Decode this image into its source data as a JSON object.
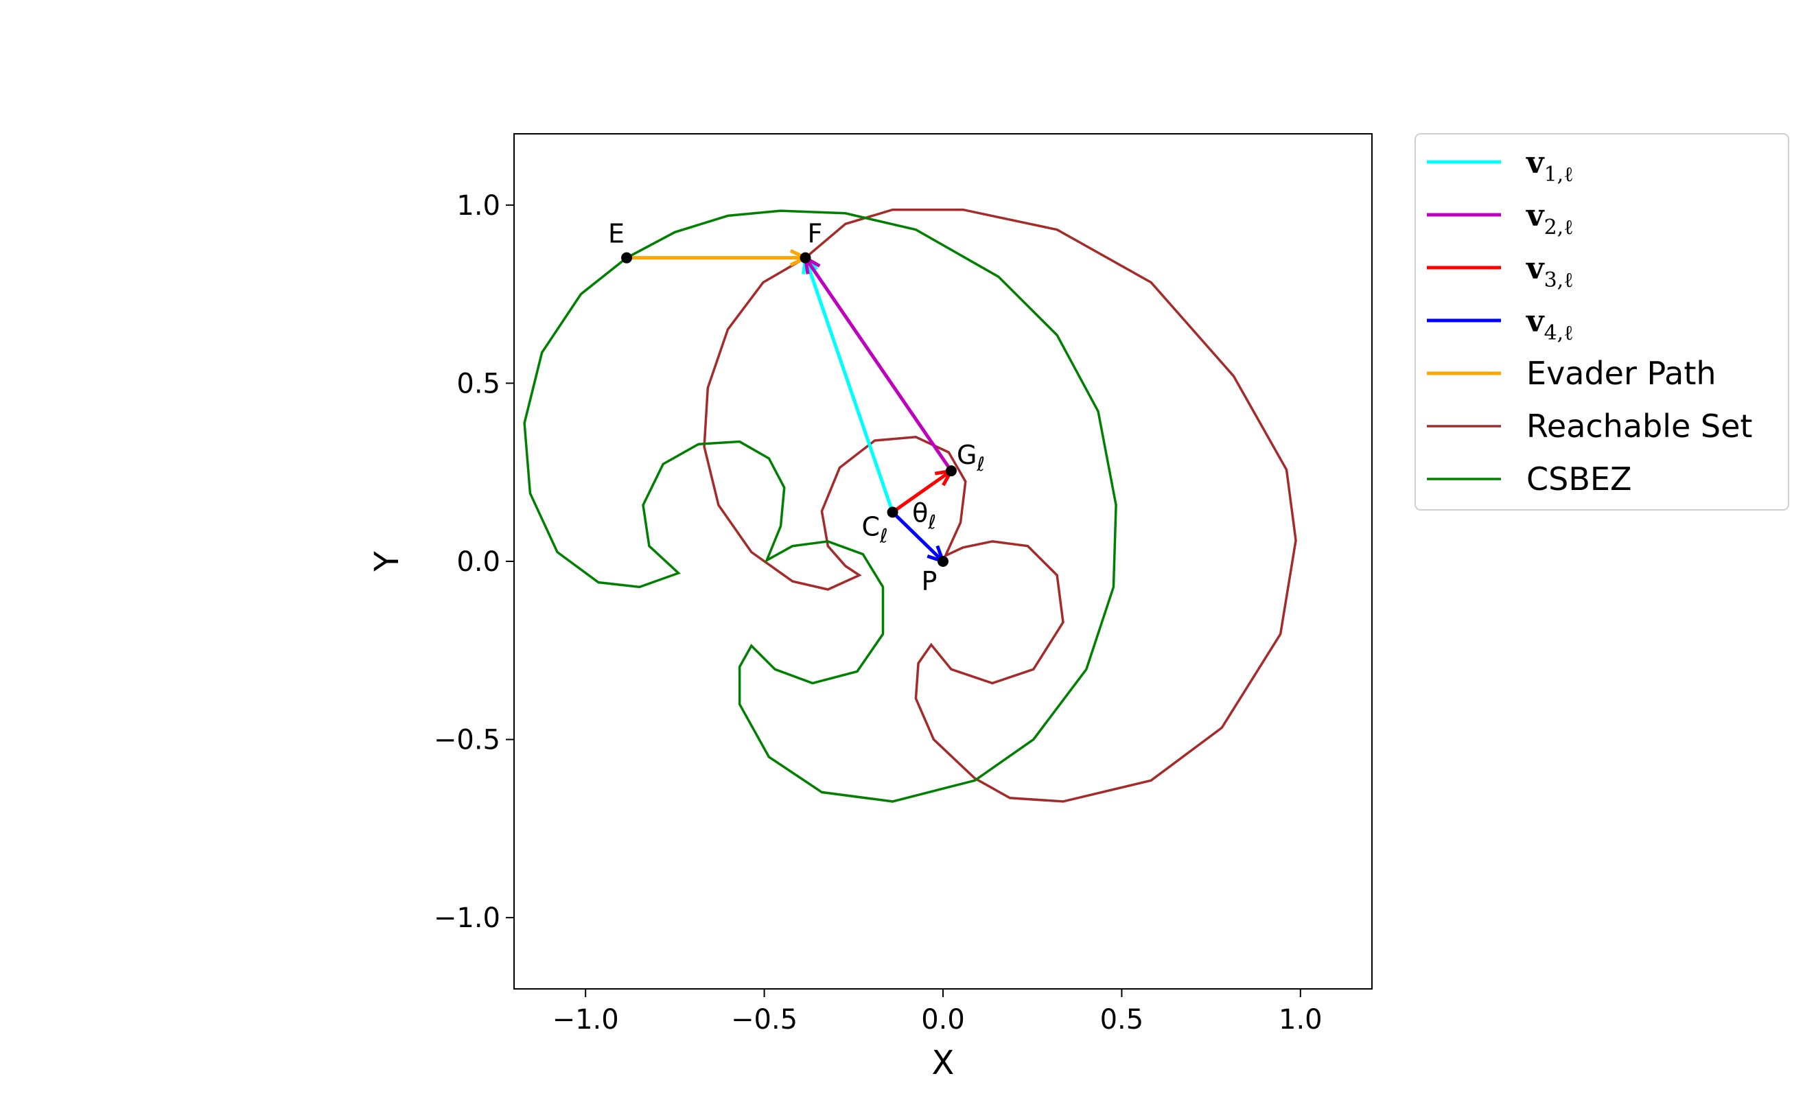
{
  "chart_data": {
    "type": "line",
    "xlabel": "X",
    "ylabel": "Y",
    "xlim": [
      -1.2,
      1.2
    ],
    "ylim": [
      -1.2,
      1.2
    ],
    "xticks": [
      {
        "value": -1,
        "label": "−1.0"
      },
      {
        "value": -0.5,
        "label": "−0.5"
      },
      {
        "value": 0,
        "label": "0.0"
      },
      {
        "value": 0.5,
        "label": "0.5"
      },
      {
        "value": 1,
        "label": "1.0"
      }
    ],
    "yticks": [
      {
        "value": -1,
        "label": "−1.0"
      },
      {
        "value": -0.5,
        "label": "−0.5"
      },
      {
        "value": 0,
        "label": "0.0"
      },
      {
        "value": 0.5,
        "label": "0.5"
      },
      {
        "value": 1,
        "label": "1.0"
      }
    ],
    "vectors": [
      {
        "name": "v",
        "sub": "1,ℓ",
        "color": "#00ffff",
        "x": [
          -0.141,
          -0.385
        ],
        "y": [
          0.138,
          0.852
        ]
      },
      {
        "name": "v",
        "sub": "2,ℓ",
        "color": "#bf00bf",
        "x": [
          0.023,
          -0.385
        ],
        "y": [
          0.254,
          0.852
        ]
      },
      {
        "name": "v",
        "sub": "3,ℓ",
        "color": "#ff0000",
        "x": [
          -0.141,
          0.023
        ],
        "y": [
          0.138,
          0.254
        ]
      },
      {
        "name": "v",
        "sub": "4,ℓ",
        "color": "#0000ff",
        "x": [
          -0.141,
          0
        ],
        "y": [
          0.138,
          0
        ]
      },
      {
        "name": "Evader Path",
        "color": "#ffa500",
        "x": [
          -0.885,
          -0.385
        ],
        "y": [
          0.852,
          0.852
        ]
      }
    ],
    "series": [
      {
        "name": "Reachable Set",
        "color": "#a52a2a",
        "x": [
          -0.385,
          -0.273,
          -0.141,
          0.056,
          0.319,
          0.582,
          0.813,
          0.961,
          0.987,
          0.944,
          0.78,
          0.582,
          0.336,
          0.187,
          0.089,
          -0.026,
          -0.076,
          -0.069,
          -0.033,
          0.023,
          0.138,
          0.253,
          0.336,
          0.319,
          0.237,
          0.138,
          0.056,
          0.007,
          0.049,
          0.063,
          0.016,
          -0.076,
          -0.191,
          -0.289,
          -0.339,
          -0.322,
          -0.273,
          -0.234,
          -0.322,
          -0.421,
          -0.536,
          -0.628,
          -0.668,
          -0.658,
          -0.602,
          -0.503,
          -0.385
        ],
        "y": [
          0.852,
          0.947,
          0.987,
          0.987,
          0.931,
          0.783,
          0.52,
          0.257,
          0.059,
          -0.204,
          -0.467,
          -0.615,
          -0.674,
          -0.664,
          -0.609,
          -0.5,
          -0.385,
          -0.286,
          -0.234,
          -0.303,
          -0.342,
          -0.303,
          -0.171,
          -0.039,
          0.043,
          0.056,
          0.039,
          0.016,
          0.109,
          0.224,
          0.306,
          0.349,
          0.339,
          0.263,
          0.141,
          0.043,
          -0.013,
          -0.039,
          -0.079,
          -0.056,
          0.026,
          0.158,
          0.322,
          0.487,
          0.651,
          0.783,
          0.852
        ]
      },
      {
        "name": "CSBEZ",
        "color": "#008000",
        "x": [
          -0.885,
          -0.75,
          -0.602,
          -0.454,
          -0.273,
          -0.076,
          0.155,
          0.319,
          0.434,
          0.484,
          0.477,
          0.401,
          0.253,
          0.089,
          -0.141,
          -0.339,
          -0.487,
          -0.569,
          -0.569,
          -0.536,
          -0.47,
          -0.365,
          -0.24,
          -0.168,
          -0.168,
          -0.224,
          -0.322,
          -0.421,
          -0.493,
          -0.454,
          -0.444,
          -0.487,
          -0.569,
          -0.684,
          -0.783,
          -0.839,
          -0.822,
          -0.74,
          -0.849,
          -0.964,
          -1.079,
          -1.155,
          -1.171,
          -1.122,
          -1.013,
          -0.885
        ],
        "y": [
          0.852,
          0.924,
          0.97,
          0.984,
          0.977,
          0.931,
          0.799,
          0.635,
          0.421,
          0.158,
          -0.072,
          -0.303,
          -0.5,
          -0.615,
          -0.674,
          -0.648,
          -0.549,
          -0.401,
          -0.296,
          -0.237,
          -0.303,
          -0.342,
          -0.309,
          -0.204,
          -0.072,
          0.02,
          0.056,
          0.043,
          0.003,
          0.099,
          0.207,
          0.289,
          0.336,
          0.329,
          0.273,
          0.158,
          0.043,
          -0.033,
          -0.072,
          -0.059,
          0.026,
          0.191,
          0.388,
          0.586,
          0.75,
          0.852
        ]
      }
    ],
    "points": [
      {
        "label": "E",
        "x": -0.885,
        "y": 0.852
      },
      {
        "label": "F",
        "x": -0.385,
        "y": 0.852
      },
      {
        "label": "G",
        "sub": "ℓ",
        "x": 0.023,
        "y": 0.254
      },
      {
        "label": "C",
        "sub": "ℓ",
        "x": -0.141,
        "y": 0.138
      },
      {
        "label": "P",
        "x": 0,
        "y": 0
      }
    ],
    "angle_label": {
      "text": "θ",
      "sub": "ℓ"
    }
  }
}
